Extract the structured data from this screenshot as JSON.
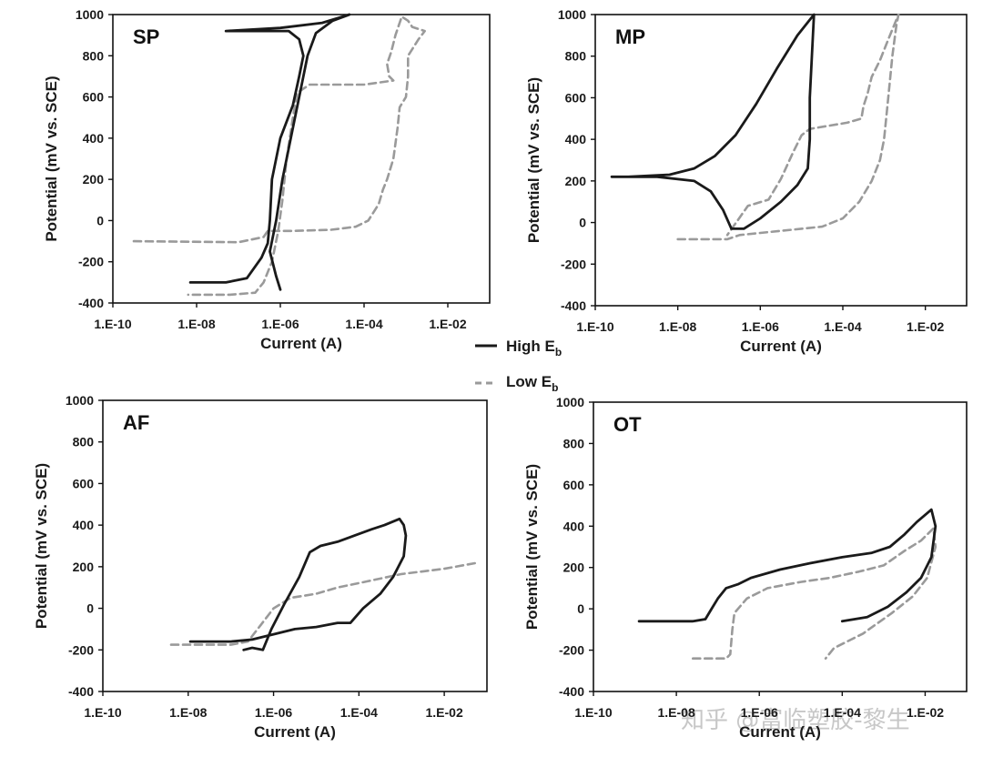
{
  "legend": {
    "high_label": "High E",
    "high_sub": "b",
    "low_label": "Low E",
    "low_sub": "b",
    "high_color": "#1a1a1a",
    "low_color": "#9a9a9a"
  },
  "watermark": "知乎 @富临塑胶-黎生",
  "chart_data": [
    {
      "type": "line",
      "title": "SP",
      "xlabel": "Current (A)",
      "ylabel": "Potential (mV vs. SCE)",
      "x_scale": "log",
      "xlim_exp": [
        -10,
        -1
      ],
      "x_tick_exps": [
        -10,
        -8,
        -6,
        -4,
        -2
      ],
      "x_tick_labels": [
        "1.E-10",
        "1.E-08",
        "1.E-06",
        "1.E-04",
        "1.E-02"
      ],
      "ylim": [
        -400,
        1000
      ],
      "y_ticks": [
        -400,
        -200,
        0,
        200,
        400,
        600,
        800,
        1000
      ],
      "series": [
        {
          "name": "High Eb",
          "style": "solid",
          "points": [
            [
              -8.15,
              -300
            ],
            [
              -7.3,
              -300
            ],
            [
              -6.8,
              -280
            ],
            [
              -6.45,
              -180
            ],
            [
              -6.3,
              -110
            ],
            [
              -6.25,
              0
            ],
            [
              -6.2,
              200
            ],
            [
              -6.0,
              400
            ],
            [
              -5.7,
              560
            ],
            [
              -5.55,
              700
            ],
            [
              -5.45,
              800
            ],
            [
              -5.55,
              880
            ],
            [
              -5.8,
              920
            ],
            [
              -7.3,
              920
            ],
            [
              -6.0,
              935
            ],
            [
              -5.0,
              960
            ],
            [
              -4.35,
              1000
            ],
            [
              -4.75,
              970
            ],
            [
              -5.15,
              910
            ],
            [
              -5.35,
              800
            ],
            [
              -5.55,
              600
            ],
            [
              -5.75,
              400
            ],
            [
              -5.95,
              200
            ],
            [
              -6.1,
              0
            ],
            [
              -6.25,
              -150
            ],
            [
              -6.1,
              -270
            ],
            [
              -6.0,
              -335
            ]
          ]
        },
        {
          "name": "Low Eb",
          "style": "dashed",
          "points": [
            [
              -9.5,
              -100
            ],
            [
              -7.0,
              -105
            ],
            [
              -6.4,
              -80
            ],
            [
              -6.3,
              -50
            ],
            [
              -5.7,
              -50
            ],
            [
              -4.8,
              -45
            ],
            [
              -4.2,
              -30
            ],
            [
              -3.9,
              0
            ],
            [
              -3.65,
              80
            ],
            [
              -3.55,
              150
            ],
            [
              -3.45,
              200
            ],
            [
              -3.3,
              300
            ],
            [
              -3.2,
              450
            ],
            [
              -3.15,
              550
            ],
            [
              -3.0,
              600
            ],
            [
              -2.95,
              700
            ],
            [
              -2.95,
              800
            ],
            [
              -2.7,
              880
            ],
            [
              -2.55,
              920
            ],
            [
              -2.85,
              940
            ],
            [
              -2.95,
              970
            ],
            [
              -3.1,
              990
            ],
            [
              -3.25,
              900
            ],
            [
              -3.35,
              820
            ],
            [
              -3.45,
              760
            ],
            [
              -3.4,
              700
            ],
            [
              -3.3,
              680
            ],
            [
              -4.0,
              660
            ],
            [
              -5.3,
              660
            ],
            [
              -5.6,
              620
            ],
            [
              -5.7,
              500
            ],
            [
              -5.85,
              300
            ],
            [
              -5.95,
              100
            ],
            [
              -6.05,
              -50
            ],
            [
              -6.2,
              -200
            ],
            [
              -6.4,
              -300
            ],
            [
              -6.6,
              -350
            ],
            [
              -7.2,
              -360
            ],
            [
              -8.2,
              -360
            ]
          ]
        }
      ]
    },
    {
      "type": "line",
      "title": "MP",
      "xlabel": "Current (A)",
      "ylabel": "Potential (mV vs. SCE)",
      "x_scale": "log",
      "xlim_exp": [
        -10,
        -1
      ],
      "x_tick_exps": [
        -10,
        -8,
        -6,
        -4,
        -2
      ],
      "x_tick_labels": [
        "1.E-10",
        "1.E-08",
        "1.E-06",
        "1.E-04",
        "1.E-02"
      ],
      "ylim": [
        -400,
        1000
      ],
      "y_ticks": [
        -400,
        -200,
        0,
        200,
        400,
        600,
        800,
        1000
      ],
      "series": [
        {
          "name": "High Eb",
          "style": "solid",
          "points": [
            [
              -9.6,
              220
            ],
            [
              -8.5,
              220
            ],
            [
              -7.6,
              200
            ],
            [
              -7.2,
              150
            ],
            [
              -6.9,
              60
            ],
            [
              -6.7,
              -30
            ],
            [
              -6.4,
              -30
            ],
            [
              -6.0,
              20
            ],
            [
              -5.5,
              100
            ],
            [
              -5.1,
              180
            ],
            [
              -4.85,
              260
            ],
            [
              -4.8,
              400
            ],
            [
              -4.8,
              600
            ],
            [
              -4.75,
              800
            ],
            [
              -4.7,
              1000
            ],
            [
              -5.1,
              900
            ],
            [
              -5.6,
              740
            ],
            [
              -6.1,
              570
            ],
            [
              -6.6,
              420
            ],
            [
              -7.1,
              320
            ],
            [
              -7.6,
              260
            ],
            [
              -8.2,
              230
            ],
            [
              -9.2,
              220
            ],
            [
              -9.6,
              220
            ]
          ]
        },
        {
          "name": "Low Eb",
          "style": "dashed",
          "points": [
            [
              -8.0,
              -80
            ],
            [
              -6.8,
              -80
            ],
            [
              -6.5,
              -60
            ],
            [
              -6.0,
              -50
            ],
            [
              -5.5,
              -40
            ],
            [
              -4.5,
              -20
            ],
            [
              -4.0,
              20
            ],
            [
              -3.6,
              100
            ],
            [
              -3.3,
              200
            ],
            [
              -3.1,
              300
            ],
            [
              -3.0,
              400
            ],
            [
              -2.9,
              600
            ],
            [
              -2.8,
              800
            ],
            [
              -2.7,
              950
            ],
            [
              -2.65,
              1000
            ],
            [
              -2.9,
              880
            ],
            [
              -3.1,
              780
            ],
            [
              -3.3,
              700
            ],
            [
              -3.4,
              620
            ],
            [
              -3.5,
              560
            ],
            [
              -3.55,
              500
            ],
            [
              -3.9,
              480
            ],
            [
              -4.8,
              450
            ],
            [
              -5.0,
              420
            ],
            [
              -5.2,
              340
            ],
            [
              -5.5,
              210
            ],
            [
              -5.8,
              110
            ],
            [
              -6.3,
              80
            ],
            [
              -6.8,
              -60
            ]
          ]
        }
      ]
    },
    {
      "type": "line",
      "title": "AF",
      "xlabel": "Current (A)",
      "ylabel": "Potential (mV vs. SCE)",
      "x_scale": "log",
      "xlim_exp": [
        -10,
        -1
      ],
      "x_tick_exps": [
        -10,
        -8,
        -6,
        -4,
        -2
      ],
      "x_tick_labels": [
        "1.E-10",
        "1.E-08",
        "1.E-06",
        "1.E-04",
        "1.E-02"
      ],
      "ylim": [
        -400,
        1000
      ],
      "y_ticks": [
        -400,
        -200,
        0,
        200,
        400,
        600,
        800,
        1000
      ],
      "series": [
        {
          "name": "High Eb",
          "style": "solid",
          "points": [
            [
              -7.95,
              -160
            ],
            [
              -7.0,
              -160
            ],
            [
              -6.5,
              -150
            ],
            [
              -6.0,
              -125
            ],
            [
              -5.5,
              -100
            ],
            [
              -5.0,
              -90
            ],
            [
              -4.5,
              -70
            ],
            [
              -4.2,
              -70
            ],
            [
              -3.9,
              0
            ],
            [
              -3.5,
              70
            ],
            [
              -3.2,
              150
            ],
            [
              -2.95,
              250
            ],
            [
              -2.9,
              350
            ],
            [
              -2.95,
              400
            ],
            [
              -3.05,
              430
            ],
            [
              -3.4,
              400
            ],
            [
              -3.7,
              380
            ],
            [
              -4.1,
              350
            ],
            [
              -4.5,
              320
            ],
            [
              -4.9,
              300
            ],
            [
              -5.15,
              270
            ],
            [
              -5.4,
              150
            ],
            [
              -5.75,
              20
            ],
            [
              -6.05,
              -100
            ],
            [
              -6.25,
              -200
            ],
            [
              -6.5,
              -190
            ],
            [
              -6.7,
              -200
            ]
          ]
        },
        {
          "name": "Low Eb",
          "style": "dashed",
          "points": [
            [
              -8.4,
              -175
            ],
            [
              -7.0,
              -175
            ],
            [
              -6.6,
              -160
            ],
            [
              -6.3,
              -80
            ],
            [
              -6.0,
              0
            ],
            [
              -5.6,
              50
            ],
            [
              -5.0,
              70
            ],
            [
              -4.5,
              100
            ],
            [
              -3.8,
              130
            ],
            [
              -3.0,
              165
            ],
            [
              -2.0,
              190
            ],
            [
              -1.2,
              220
            ]
          ]
        }
      ]
    },
    {
      "type": "line",
      "title": "OT",
      "xlabel": "Current (A)",
      "ylabel": "Potential (mV vs. SCE)",
      "x_scale": "log",
      "xlim_exp": [
        -10,
        -1
      ],
      "x_tick_exps": [
        -10,
        -8,
        -6,
        -4,
        -2
      ],
      "x_tick_labels": [
        "1.E-10",
        "1.E-08",
        "1.E-06",
        "1.E-04",
        "1.E-02"
      ],
      "ylim": [
        -400,
        1000
      ],
      "y_ticks": [
        -400,
        -200,
        0,
        200,
        400,
        600,
        800,
        1000
      ],
      "series": [
        {
          "name": "High Eb",
          "style": "solid",
          "points": [
            [
              -8.9,
              -60
            ],
            [
              -7.6,
              -60
            ],
            [
              -7.3,
              -50
            ],
            [
              -7.15,
              0
            ],
            [
              -7.0,
              50
            ],
            [
              -6.8,
              100
            ],
            [
              -6.5,
              120
            ],
            [
              -6.2,
              150
            ],
            [
              -5.5,
              190
            ],
            [
              -4.8,
              220
            ],
            [
              -4.0,
              250
            ],
            [
              -3.3,
              270
            ],
            [
              -2.85,
              300
            ],
            [
              -2.5,
              360
            ],
            [
              -2.2,
              420
            ],
            [
              -1.85,
              480
            ],
            [
              -1.75,
              400
            ],
            [
              -1.85,
              250
            ],
            [
              -2.1,
              150
            ],
            [
              -2.45,
              80
            ],
            [
              -2.9,
              10
            ],
            [
              -3.4,
              -40
            ],
            [
              -4.0,
              -60
            ]
          ]
        },
        {
          "name": "Low Eb",
          "style": "dashed",
          "points": [
            [
              -7.6,
              -240
            ],
            [
              -6.8,
              -240
            ],
            [
              -6.7,
              -220
            ],
            [
              -6.65,
              -100
            ],
            [
              -6.6,
              -20
            ],
            [
              -6.3,
              50
            ],
            [
              -5.8,
              100
            ],
            [
              -5.0,
              130
            ],
            [
              -4.3,
              150
            ],
            [
              -3.6,
              180
            ],
            [
              -3.0,
              210
            ],
            [
              -2.5,
              280
            ],
            [
              -2.1,
              330
            ],
            [
              -1.8,
              390
            ],
            [
              -1.75,
              300
            ],
            [
              -1.95,
              150
            ],
            [
              -2.3,
              60
            ],
            [
              -2.8,
              -20
            ],
            [
              -3.5,
              -120
            ],
            [
              -4.2,
              -190
            ],
            [
              -4.4,
              -240
            ]
          ]
        }
      ]
    }
  ]
}
